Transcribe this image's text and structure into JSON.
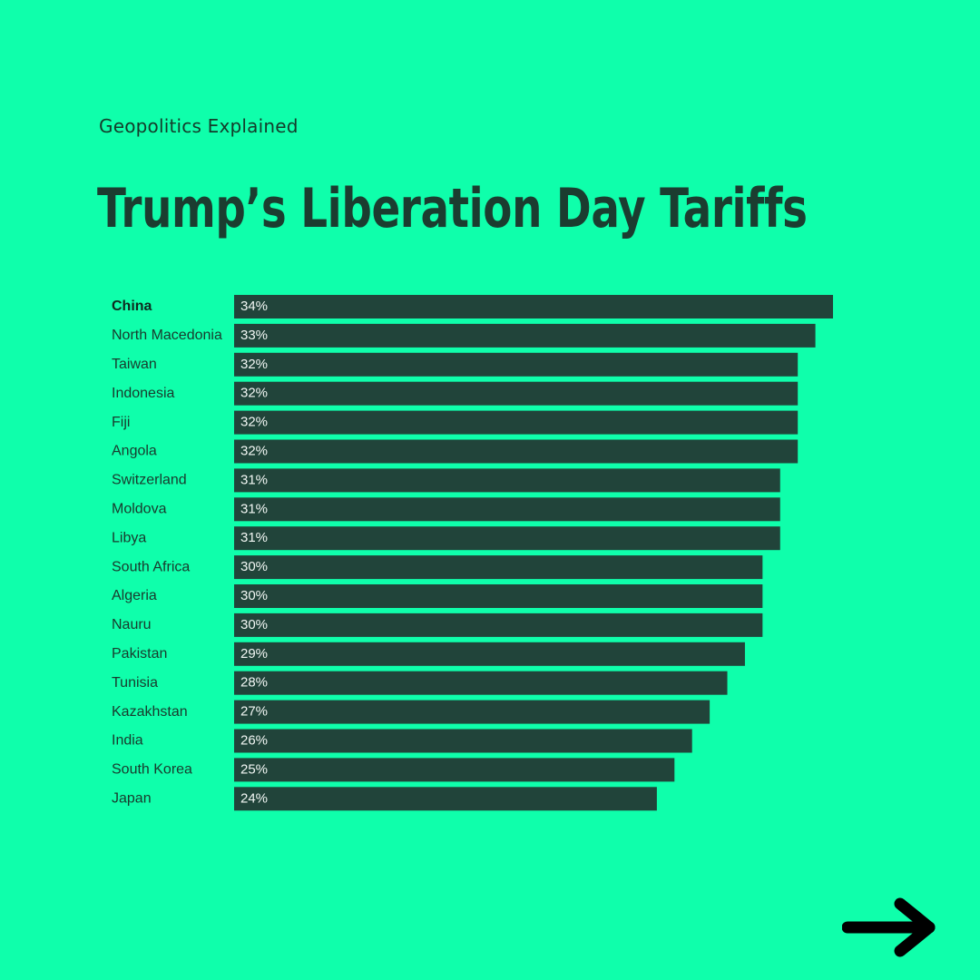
{
  "brand": "Geopolitics Explained",
  "title": "Trump’s Liberation Day Tariffs",
  "nav": {
    "next_icon": "arrow-right-icon"
  },
  "colors": {
    "background": "#0fffab",
    "bar": "#21443a",
    "text": "#1b3d30",
    "value_text": "#f2f7f4"
  },
  "chart_data": {
    "type": "bar",
    "orientation": "horizontal",
    "categories": [
      "China",
      "North Macedonia",
      "Taiwan",
      "Indonesia",
      "Fiji",
      "Angola",
      "Switzerland",
      "Moldova",
      "Libya",
      "South Africa",
      "Algeria",
      "Nauru",
      "Pakistan",
      "Tunisia",
      "Kazakhstan",
      "India",
      "South Korea",
      "Japan"
    ],
    "values": [
      34,
      33,
      32,
      32,
      32,
      32,
      31,
      31,
      31,
      30,
      30,
      30,
      29,
      28,
      27,
      26,
      25,
      24
    ],
    "value_labels": [
      "34%",
      "33%",
      "32%",
      "32%",
      "32%",
      "32%",
      "31%",
      "31%",
      "31%",
      "30%",
      "30%",
      "30%",
      "29%",
      "28%",
      "27%",
      "26%",
      "25%",
      "24%"
    ],
    "highlight": "China",
    "xlim": [
      0,
      34
    ],
    "grid": false,
    "legend": "none",
    "title": "Trump’s Liberation Day Tariffs",
    "xlabel": "",
    "ylabel": ""
  }
}
